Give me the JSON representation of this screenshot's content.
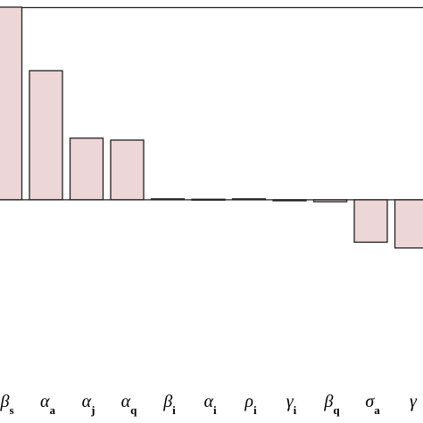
{
  "chart_data": {
    "type": "bar",
    "categories": [
      "β",
      "α",
      "α",
      "α",
      "β",
      "α",
      "ρ",
      "γ",
      "β",
      "σ",
      "γ"
    ],
    "subscripts": [
      "s",
      "a",
      "j",
      "q",
      "i",
      "i",
      "i",
      "i",
      "q",
      "a",
      null
    ],
    "values": [
      1.0,
      0.67,
      0.32,
      0.31,
      0.005,
      0.003,
      0.005,
      -0.005,
      -0.01,
      -0.22,
      -0.25
    ],
    "color": "#ecd6d7",
    "ylim": [
      -0.95,
      1.0
    ]
  }
}
